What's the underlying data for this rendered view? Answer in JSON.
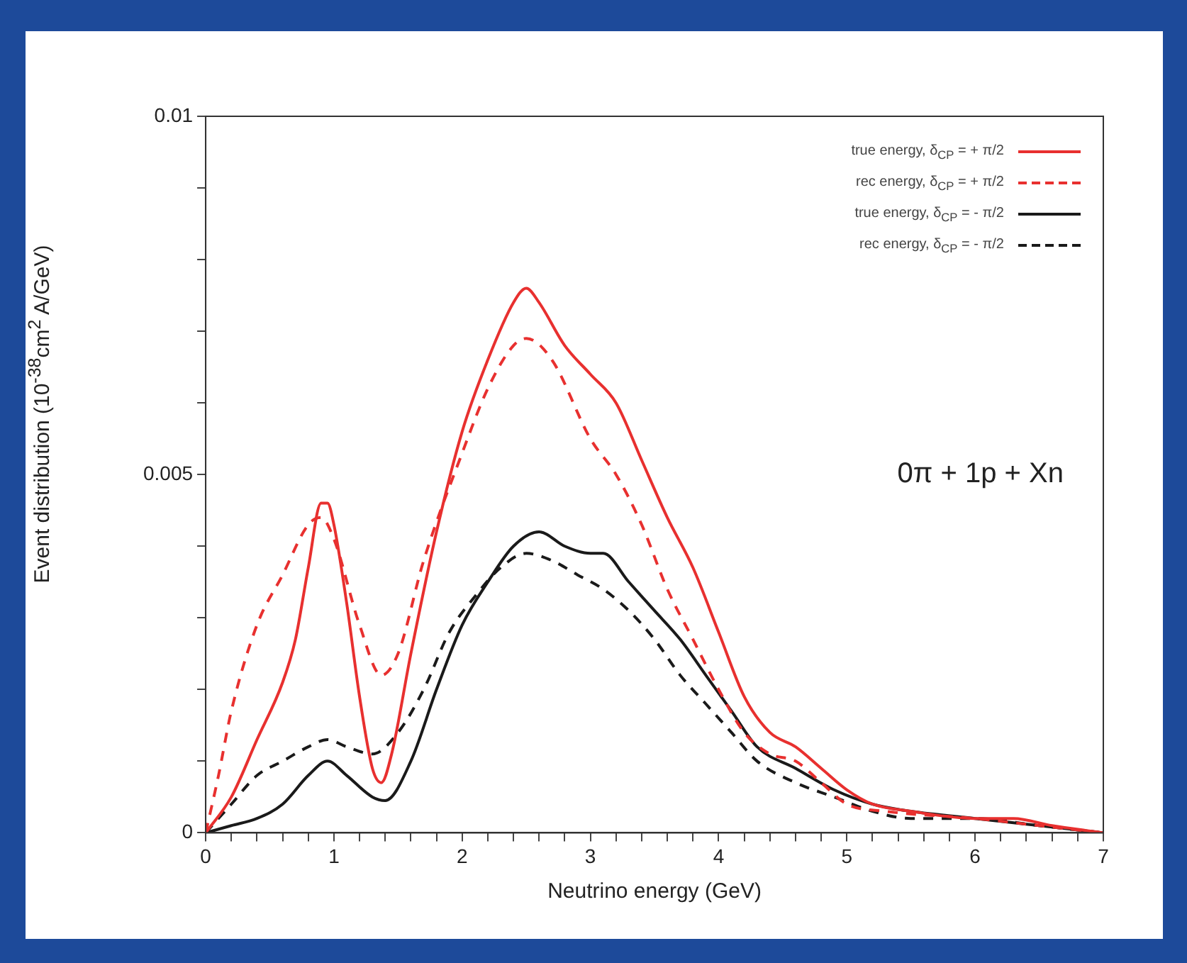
{
  "chart_data": {
    "type": "line",
    "xlabel": "Neutrino energy (GeV)",
    "ylabel": "Event distribution (10$^{-38}$cm$^{2}$ A/GeV)",
    "annotations": [
      "0π + 1p + Xn"
    ],
    "xlim": [
      0,
      7
    ],
    "xticks": [
      0,
      {
        "value": 0.2,
        "label": null
      },
      {
        "value": 0.4,
        "label": null
      },
      {
        "value": 0.6,
        "label": null
      },
      {
        "value": 0.8,
        "label": null
      },
      1,
      {
        "value": 1.2,
        "label": null
      },
      {
        "value": 1.4,
        "label": null
      },
      {
        "value": 1.6,
        "label": null
      },
      {
        "value": 1.8,
        "label": null
      },
      2,
      {
        "value": 2.2,
        "label": null
      },
      {
        "value": 2.4,
        "label": null
      },
      {
        "value": 2.6,
        "label": null
      },
      {
        "value": 2.8,
        "label": null
      },
      3,
      {
        "value": 3.2,
        "label": null
      },
      {
        "value": 3.4,
        "label": null
      },
      {
        "value": 3.6,
        "label": null
      },
      {
        "value": 3.8,
        "label": null
      },
      4,
      {
        "value": 4.2,
        "label": null
      },
      {
        "value": 4.4,
        "label": null
      },
      {
        "value": 4.6,
        "label": null
      },
      {
        "value": 4.8,
        "label": null
      },
      5,
      {
        "value": 5.2,
        "label": null
      },
      {
        "value": 5.4,
        "label": null
      },
      {
        "value": 5.6,
        "label": null
      },
      {
        "value": 5.8,
        "label": null
      },
      6,
      {
        "value": 6.2,
        "label": null
      },
      {
        "value": 6.4,
        "label": null
      },
      {
        "value": 6.6,
        "label": null
      },
      {
        "value": 6.8,
        "label": null
      },
      7
    ],
    "ylim": [
      0,
      0.01
    ],
    "yticks": [
      0,
      {
        "value": 0.001,
        "label": null
      },
      {
        "value": 0.002,
        "label": null
      },
      {
        "value": 0.003,
        "label": null
      },
      {
        "value": 0.004,
        "label": null
      },
      0.005,
      {
        "value": 0.006,
        "label": null
      },
      {
        "value": 0.007,
        "label": null
      },
      {
        "value": 0.008,
        "label": null
      },
      {
        "value": 0.009,
        "label": null
      },
      0.01
    ],
    "grid": false,
    "legend": "top right",
    "marker": "none",
    "series": [
      {
        "name": "true energy, δ$_{CP}$ = + π/2",
        "color": "#e8302f",
        "line_style": "solid",
        "x": [
          0,
          0.2,
          0.4,
          0.6,
          0.7,
          0.8,
          0.9,
          0.95,
          1.0,
          1.1,
          1.2,
          1.3,
          1.37,
          1.45,
          1.6,
          1.8,
          2.0,
          2.2,
          2.4,
          2.5,
          2.6,
          2.8,
          3.0,
          3.2,
          3.4,
          3.6,
          3.8,
          4.0,
          4.2,
          4.4,
          4.6,
          4.8,
          5.0,
          5.2,
          5.5,
          6.0,
          6.3,
          6.6,
          7
        ],
        "values": [
          0,
          0.0005,
          0.0013,
          0.0021,
          0.0027,
          0.0037,
          0.0046,
          0.0046,
          0.0043,
          0.0032,
          0.0019,
          0.0009,
          0.0007,
          0.0011,
          0.0025,
          0.0042,
          0.0056,
          0.0066,
          0.0074,
          0.0076,
          0.0074,
          0.0068,
          0.0064,
          0.006,
          0.0052,
          0.0044,
          0.0037,
          0.0028,
          0.0019,
          0.0014,
          0.0012,
          0.0009,
          0.0006,
          0.0004,
          0.0003,
          0.0002,
          0.0002,
          0.0001,
          0
        ]
      },
      {
        "name": "rec energy, δ$_{CP}$ = + π/2",
        "color": "#e8302f",
        "line_style": "dashed",
        "x": [
          0,
          0.1,
          0.2,
          0.4,
          0.6,
          0.8,
          0.9,
          1.0,
          1.2,
          1.37,
          1.5,
          1.7,
          2.0,
          2.2,
          2.4,
          2.5,
          2.7,
          3.0,
          3.2,
          3.4,
          3.6,
          3.8,
          4.0,
          4.2,
          4.4,
          4.6,
          4.8,
          5.0,
          5.3,
          6.0,
          6.5,
          7
        ],
        "values": [
          0,
          0.0008,
          0.0017,
          0.0029,
          0.0036,
          0.0043,
          0.0044,
          0.0041,
          0.0029,
          0.0022,
          0.0025,
          0.0038,
          0.0053,
          0.0062,
          0.0068,
          0.0069,
          0.0066,
          0.0055,
          0.005,
          0.0043,
          0.0034,
          0.0027,
          0.002,
          0.0014,
          0.0011,
          0.001,
          0.0007,
          0.0004,
          0.0003,
          0.0002,
          0.0001,
          0
        ]
      },
      {
        "name": "true energy, δ$_{CP}$ = - π/2",
        "color": "#1a1a1a",
        "line_style": "solid",
        "x": [
          0,
          0.2,
          0.4,
          0.6,
          0.8,
          0.95,
          1.1,
          1.3,
          1.4,
          1.6,
          1.8,
          2.0,
          2.2,
          2.4,
          2.6,
          2.8,
          3.0,
          3.1,
          3.3,
          3.5,
          3.7,
          3.9,
          4.1,
          4.3,
          4.6,
          4.9,
          5.2,
          5.5,
          6.0,
          6.5,
          7
        ],
        "values": [
          0,
          0.0001,
          0.0002,
          0.0004,
          0.0008,
          0.001,
          0.0008,
          0.0005,
          0.00045,
          0.001,
          0.002,
          0.0029,
          0.0035,
          0.004,
          0.0042,
          0.004,
          0.0039,
          0.0039,
          0.0035,
          0.0031,
          0.0027,
          0.0022,
          0.0017,
          0.0012,
          0.0009,
          0.0006,
          0.0004,
          0.0003,
          0.0002,
          0.0001,
          0
        ]
      },
      {
        "name": "rec energy, δ$_{CP}$ = - π/2",
        "color": "#1a1a1a",
        "line_style": "dashed",
        "x": [
          0,
          0.2,
          0.4,
          0.6,
          0.8,
          0.95,
          1.1,
          1.3,
          1.5,
          1.7,
          1.9,
          2.1,
          2.3,
          2.5,
          2.7,
          2.9,
          3.1,
          3.3,
          3.5,
          3.7,
          3.9,
          4.1,
          4.3,
          4.6,
          4.9,
          5.2,
          5.5,
          6.0,
          6.5,
          7
        ],
        "values": [
          0,
          0.0004,
          0.0008,
          0.001,
          0.0012,
          0.0013,
          0.0012,
          0.0011,
          0.0014,
          0.002,
          0.0028,
          0.0033,
          0.0037,
          0.0039,
          0.0038,
          0.0036,
          0.0034,
          0.0031,
          0.0027,
          0.0022,
          0.0018,
          0.0014,
          0.001,
          0.0007,
          0.0005,
          0.0003,
          0.0002,
          0.0002,
          0.0001,
          0
        ]
      }
    ]
  }
}
